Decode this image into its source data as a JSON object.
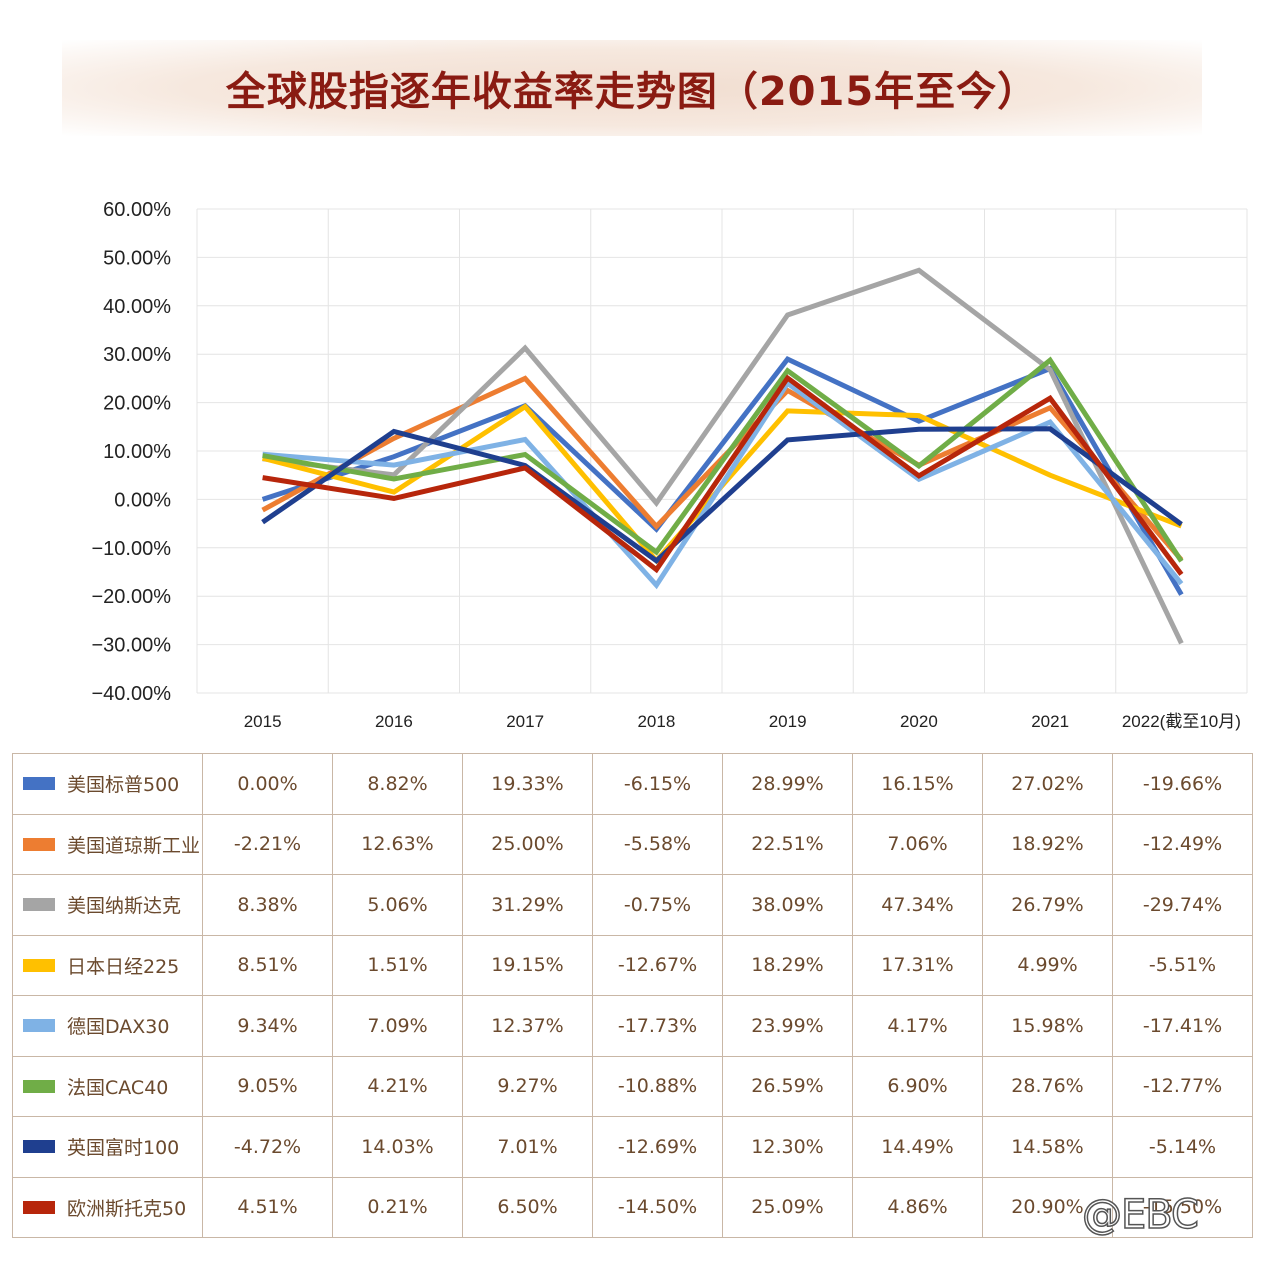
{
  "title": "全球股指逐年收益率走势图（2015年至今）",
  "watermark": "@EBC",
  "chart_data": {
    "type": "line",
    "title": "全球股指逐年收益率走势图（2015年至今）",
    "categories": [
      "2015",
      "2016",
      "2017",
      "2018",
      "2019",
      "2020",
      "2021",
      "2022(截至10月)"
    ],
    "ylim": [
      -40,
      60
    ],
    "y_tick_step": 10,
    "y_tick_format": "percent_2dp",
    "grid": true,
    "legend_placement": "data table below chart",
    "series": [
      {
        "name": "美国标普500",
        "color": "#4472c4",
        "values": [
          0.0,
          8.82,
          19.33,
          -6.15,
          28.99,
          16.15,
          27.02,
          -19.66
        ],
        "labels": [
          "0.00%",
          "8.82%",
          "19.33%",
          "-6.15%",
          "28.99%",
          "16.15%",
          "27.02%",
          "-19.66%"
        ]
      },
      {
        "name": "美国道琼斯工业",
        "color": "#ed7d31",
        "values": [
          -2.21,
          12.63,
          25.0,
          -5.58,
          22.51,
          7.06,
          18.92,
          -12.49
        ],
        "labels": [
          "-2.21%",
          "12.63%",
          "25.00%",
          "-5.58%",
          "22.51%",
          "7.06%",
          "18.92%",
          "-12.49%"
        ]
      },
      {
        "name": "美国纳斯达克",
        "color": "#a5a5a5",
        "values": [
          8.38,
          5.06,
          31.29,
          -0.75,
          38.09,
          47.34,
          26.79,
          -29.74
        ],
        "labels": [
          "8.38%",
          "5.06%",
          "31.29%",
          "-0.75%",
          "38.09%",
          "47.34%",
          "26.79%",
          "-29.74%"
        ]
      },
      {
        "name": "日本日经225",
        "color": "#ffc000",
        "values": [
          8.51,
          1.51,
          19.15,
          -12.67,
          18.29,
          17.31,
          4.99,
          -5.51
        ],
        "labels": [
          "8.51%",
          "1.51%",
          "19.15%",
          "-12.67%",
          "18.29%",
          "17.31%",
          "4.99%",
          "-5.51%"
        ]
      },
      {
        "name": "德国DAX30",
        "color": "#7fb2e5",
        "values": [
          9.34,
          7.09,
          12.37,
          -17.73,
          23.99,
          4.17,
          15.98,
          -17.41
        ],
        "labels": [
          "9.34%",
          "7.09%",
          "12.37%",
          "-17.73%",
          "23.99%",
          "4.17%",
          "15.98%",
          "-17.41%"
        ]
      },
      {
        "name": "法国CAC40",
        "color": "#70ad47",
        "values": [
          9.05,
          4.21,
          9.27,
          -10.88,
          26.59,
          6.9,
          28.76,
          -12.77
        ],
        "labels": [
          "9.05%",
          "4.21%",
          "9.27%",
          "-10.88%",
          "26.59%",
          "6.90%",
          "28.76%",
          "-12.77%"
        ]
      },
      {
        "name": "英国富时100",
        "color": "#1f3f8f",
        "values": [
          -4.72,
          14.03,
          7.01,
          -12.69,
          12.3,
          14.49,
          14.58,
          -5.14
        ],
        "labels": [
          "-4.72%",
          "14.03%",
          "7.01%",
          "-12.69%",
          "12.30%",
          "14.49%",
          "14.58%",
          "-5.14%"
        ]
      },
      {
        "name": "欧洲斯托克50",
        "color": "#b7260b",
        "values": [
          4.51,
          0.21,
          6.5,
          -14.5,
          25.09,
          4.86,
          20.9,
          -15.5
        ],
        "labels": [
          "4.51%",
          "0.21%",
          "6.50%",
          "-14.50%",
          "25.09%",
          "4.86%",
          "20.90%",
          "-15.50%"
        ]
      }
    ]
  }
}
